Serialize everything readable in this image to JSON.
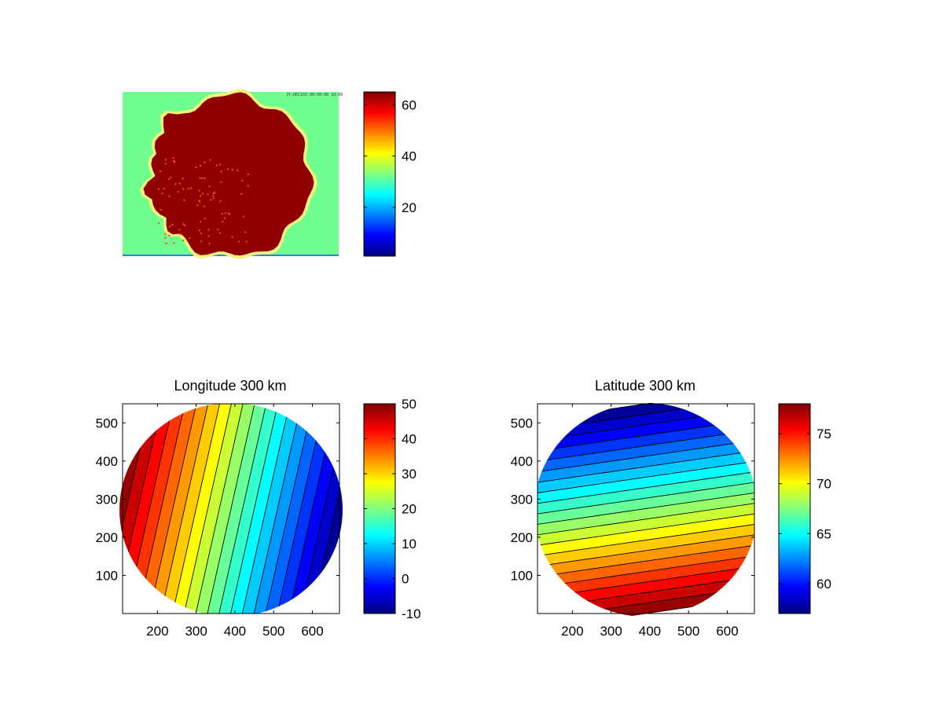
{
  "figure": {
    "background": "#ffffff",
    "colormap": "jet"
  },
  "chart_data": [
    {
      "type": "heatmap",
      "id": "image-panel",
      "title": "",
      "stamp": "JY-DEC1OZ 00:00:00 10:00",
      "background_value": 32,
      "disk_value": 64,
      "colorbar": {
        "range": [
          1,
          65
        ],
        "ticks": [
          20,
          40,
          60
        ],
        "tick_labels": [
          "20",
          "40",
          "60"
        ]
      },
      "axes_visible": false
    },
    {
      "type": "heatmap",
      "id": "longitude-panel",
      "title": "Longitude 300 km",
      "contour_levels": 20,
      "xlim": [
        110,
        670
      ],
      "ylim": [
        0,
        550
      ],
      "x_ticks": [
        200,
        300,
        400,
        500,
        600
      ],
      "x_tick_labels": [
        "200",
        "300",
        "400",
        "500",
        "600"
      ],
      "y_ticks": [
        100,
        200,
        300,
        400,
        500
      ],
      "y_tick_labels": [
        "100",
        "200",
        "300",
        "400",
        "500"
      ],
      "value_range": [
        -10,
        50
      ],
      "colorbar": {
        "range": [
          -10,
          50
        ],
        "ticks": [
          -10,
          0,
          10,
          20,
          30,
          40,
          50
        ],
        "tick_labels": [
          "-10",
          "0",
          "10",
          "20",
          "30",
          "40",
          "50"
        ]
      }
    },
    {
      "type": "heatmap",
      "id": "latitude-panel",
      "title": "Latitude 300 km",
      "contour_levels": 20,
      "xlim": [
        110,
        670
      ],
      "ylim": [
        0,
        550
      ],
      "x_ticks": [
        200,
        300,
        400,
        500,
        600
      ],
      "x_tick_labels": [
        "200",
        "300",
        "400",
        "500",
        "600"
      ],
      "y_ticks": [
        100,
        200,
        300,
        400,
        500
      ],
      "y_tick_labels": [
        "100",
        "200",
        "300",
        "400",
        "500"
      ],
      "value_range": [
        57,
        78
      ],
      "colorbar": {
        "range": [
          57,
          78
        ],
        "ticks": [
          60,
          65,
          70,
          75
        ],
        "tick_labels": [
          "60",
          "65",
          "70",
          "75"
        ]
      }
    }
  ]
}
